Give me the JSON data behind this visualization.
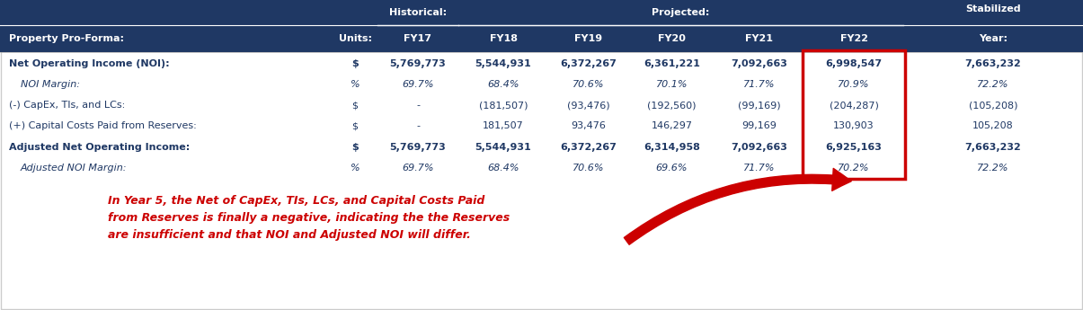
{
  "header_bg": "#1F3864",
  "header_text": "#FFFFFF",
  "body_bg": "#FFFFFF",
  "data_color": "#1F3864",
  "highlight_box_color": "#CC0000",
  "annotation_color": "#CC0000",
  "headers_top": [
    "",
    "",
    "Historical:",
    "Projected:",
    "",
    "",
    "",
    "",
    "Stabilized"
  ],
  "headers_bot": [
    "Property Pro-Forma:",
    "Units:",
    "FY17",
    "FY18",
    "FY19",
    "FY20",
    "FY21",
    "FY22",
    "Year:"
  ],
  "rows": [
    {
      "label": "Net Operating Income (NOI):",
      "units": "$",
      "values": [
        "5,769,773",
        "5,544,931",
        "6,372,267",
        "6,361,221",
        "7,092,663",
        "6,998,547",
        "7,663,232"
      ],
      "bold": true,
      "italic": false,
      "gap_before": true
    },
    {
      "label": "NOI Margin:",
      "units": "%",
      "values": [
        "69.7%",
        "68.4%",
        "70.6%",
        "70.1%",
        "71.7%",
        "70.9%",
        "72.2%"
      ],
      "bold": false,
      "italic": true,
      "gap_before": false
    },
    {
      "label": "(-) CapEx, TIs, and LCs:",
      "units": "$",
      "values": [
        "-",
        "(181,507)",
        "(93,476)",
        "(192,560)",
        "(99,169)",
        "(204,287)",
        "(105,208)"
      ],
      "bold": false,
      "italic": false,
      "gap_before": true
    },
    {
      "label": "(+) Capital Costs Paid from Reserves:",
      "units": "$",
      "values": [
        "-",
        "181,507",
        "93,476",
        "146,297",
        "99,169",
        "130,903",
        "105,208"
      ],
      "bold": false,
      "italic": false,
      "gap_before": false
    },
    {
      "label": "Adjusted Net Operating Income:",
      "units": "$",
      "values": [
        "5,769,773",
        "5,544,931",
        "6,372,267",
        "6,314,958",
        "7,092,663",
        "6,925,163",
        "7,663,232"
      ],
      "bold": true,
      "italic": false,
      "gap_before": true
    },
    {
      "label": "Adjusted NOI Margin:",
      "units": "%",
      "values": [
        "69.7%",
        "68.4%",
        "70.6%",
        "69.6%",
        "71.7%",
        "70.2%",
        "72.2%"
      ],
      "bold": false,
      "italic": true,
      "gap_before": false
    }
  ],
  "annotation_text": "In Year 5, the Net of CapEx, TIs, LCs, and Capital Costs Paid\nfrom Reserves is finally a negative, indicating the the Reserves\nare insufficient and that NOI and Adjusted NOI will differ.",
  "fig_width": 12.05,
  "fig_height": 3.45,
  "dpi": 100
}
